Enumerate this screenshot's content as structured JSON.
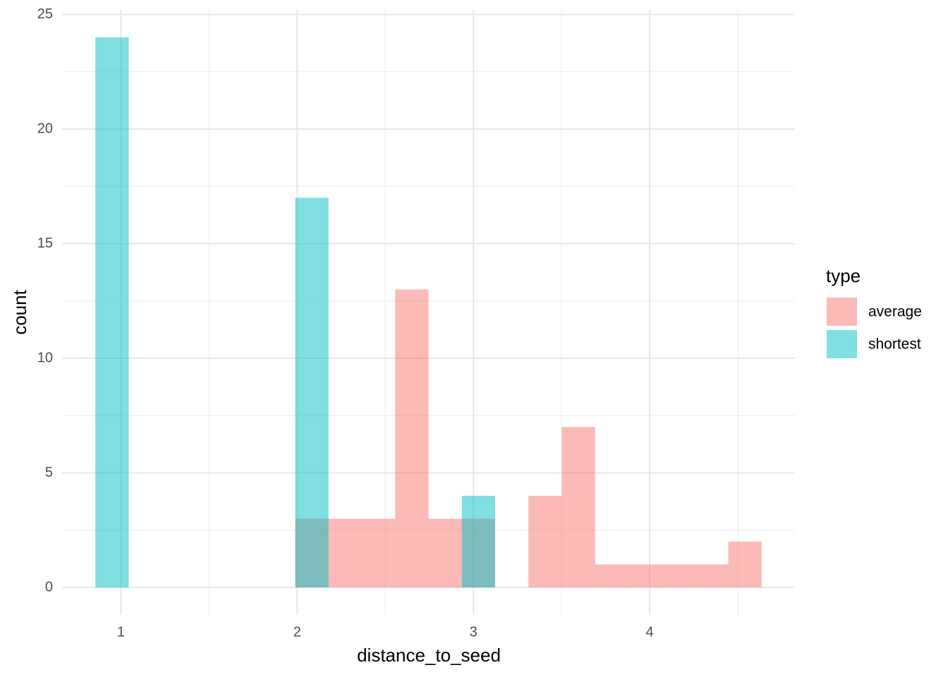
{
  "chart_data": {
    "type": "histogram",
    "x_label": "distance_to_seed",
    "y_label": "count",
    "legend_title": "type",
    "bins": [
      0.855,
      1.044,
      1.233,
      1.422,
      1.611,
      1.8,
      1.989,
      2.178,
      2.367,
      2.556,
      2.745,
      2.934,
      3.123,
      3.312,
      3.501,
      3.69,
      3.879,
      4.068,
      4.257,
      4.446,
      4.635
    ],
    "series": [
      {
        "name": "average",
        "color": "#F8766D",
        "values": [
          0,
          0,
          0,
          0,
          0,
          0,
          3,
          3,
          3,
          13,
          3,
          3,
          0,
          4,
          7,
          1,
          1,
          1,
          1,
          2
        ]
      },
      {
        "name": "shortest",
        "color": "#00BFC4",
        "values": [
          24,
          0,
          0,
          0,
          0,
          0,
          17,
          0,
          0,
          0,
          0,
          4,
          0,
          0,
          0,
          0,
          0,
          0,
          0,
          0
        ]
      }
    ],
    "opacity": 0.5,
    "xlim": [
      0.666,
      4.824
    ],
    "ylim": [
      -1.2,
      25.2
    ],
    "xticks": [
      1,
      2,
      3,
      4
    ],
    "yticks": [
      0,
      5,
      10,
      15,
      20,
      25
    ],
    "xminor": [
      1.5,
      2.5,
      3.5,
      4.5
    ],
    "yminor": [
      2.5,
      7.5,
      12.5,
      17.5,
      22.5
    ],
    "grid": true,
    "legend": "right"
  }
}
